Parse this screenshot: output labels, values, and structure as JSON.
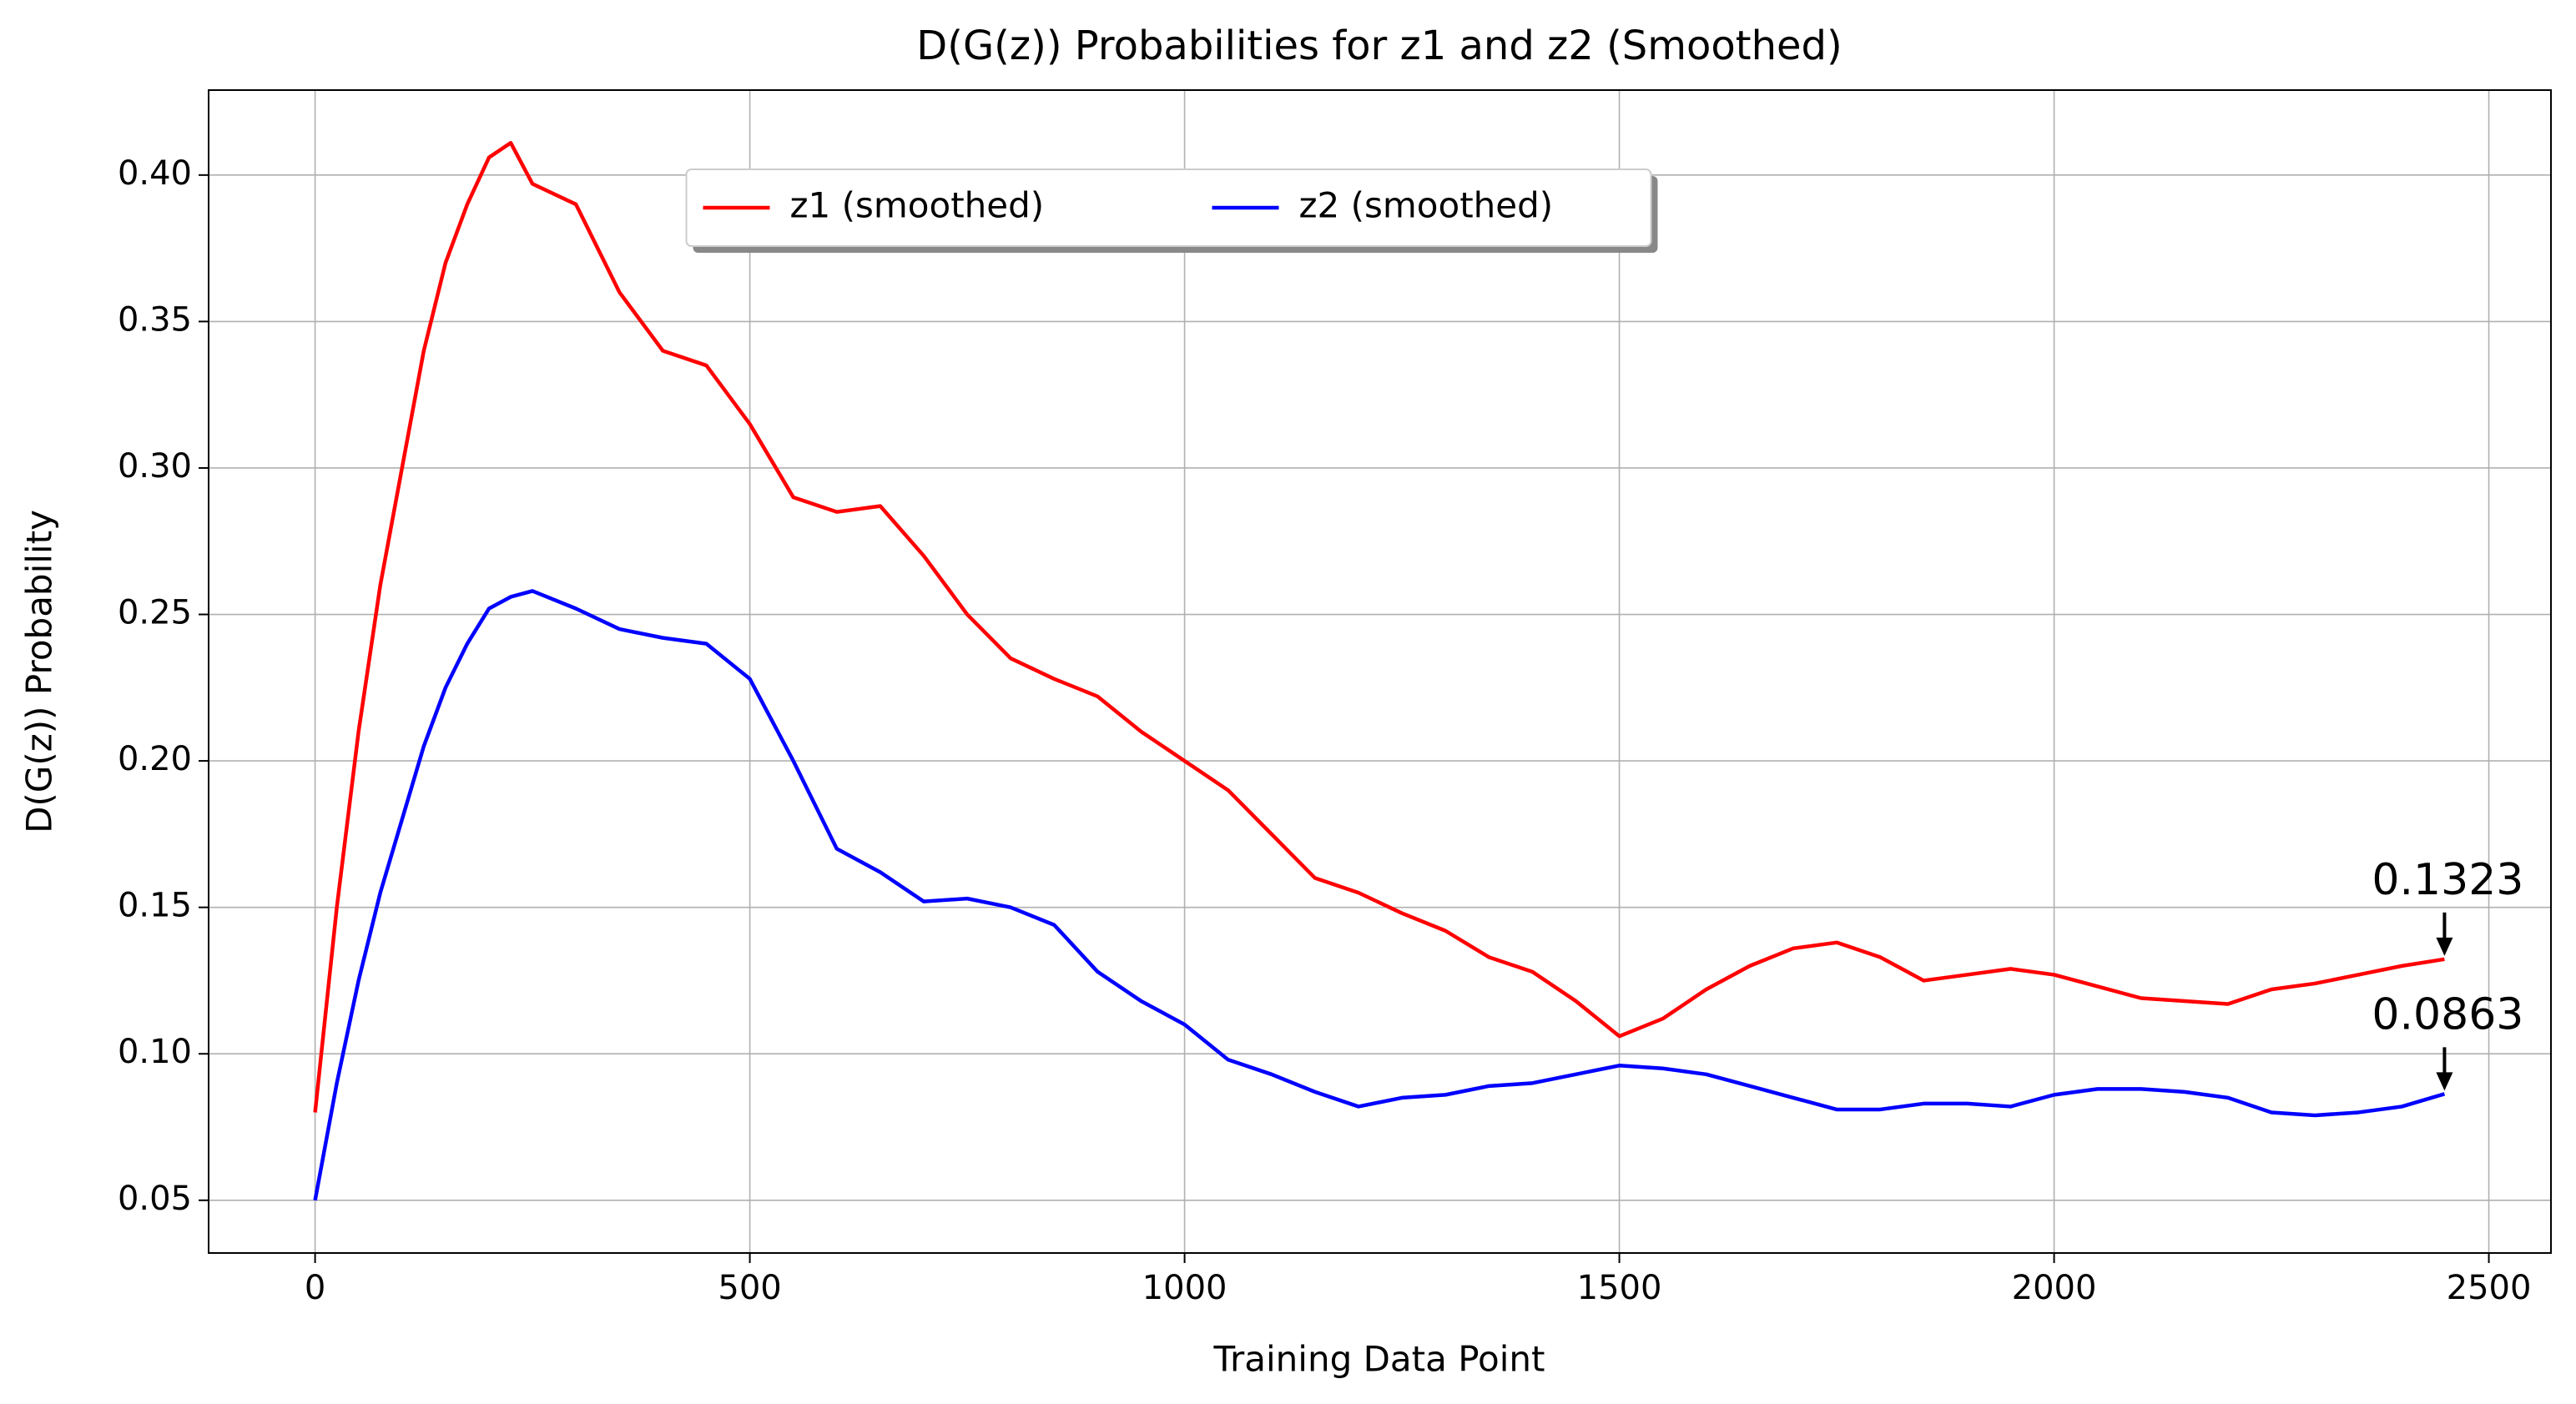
{
  "chart_data": {
    "type": "line",
    "title": "D(G(z)) Probabilities for z1 and z2 (Smoothed)",
    "xlabel": "Training Data Point",
    "ylabel": "D(G(z)) Probability",
    "x": [
      0,
      25,
      50,
      75,
      100,
      125,
      150,
      175,
      200,
      225,
      250,
      300,
      350,
      400,
      450,
      500,
      550,
      600,
      650,
      700,
      750,
      800,
      850,
      900,
      950,
      1000,
      1050,
      1100,
      1150,
      1200,
      1250,
      1300,
      1350,
      1400,
      1450,
      1500,
      1550,
      1600,
      1650,
      1700,
      1750,
      1800,
      1850,
      1900,
      1950,
      2000,
      2050,
      2100,
      2150,
      2200,
      2250,
      2300,
      2350,
      2400,
      2449
    ],
    "series": [
      {
        "name": "z1 (smoothed)",
        "color": "#ff0000",
        "values": [
          0.08,
          0.15,
          0.21,
          0.26,
          0.3,
          0.34,
          0.37,
          0.39,
          0.406,
          0.411,
          0.397,
          0.39,
          0.36,
          0.34,
          0.335,
          0.315,
          0.29,
          0.285,
          0.287,
          0.27,
          0.25,
          0.235,
          0.228,
          0.222,
          0.21,
          0.2,
          0.19,
          0.175,
          0.16,
          0.155,
          0.148,
          0.142,
          0.133,
          0.128,
          0.118,
          0.106,
          0.112,
          0.122,
          0.13,
          0.136,
          0.138,
          0.133,
          0.125,
          0.127,
          0.129,
          0.127,
          0.123,
          0.119,
          0.118,
          0.117,
          0.122,
          0.124,
          0.127,
          0.13,
          0.1323
        ]
      },
      {
        "name": "z2 (smoothed)",
        "color": "#0000ff",
        "values": [
          0.05,
          0.09,
          0.125,
          0.155,
          0.18,
          0.205,
          0.225,
          0.24,
          0.252,
          0.256,
          0.258,
          0.252,
          0.245,
          0.242,
          0.24,
          0.228,
          0.2,
          0.17,
          0.162,
          0.152,
          0.153,
          0.15,
          0.144,
          0.128,
          0.118,
          0.11,
          0.098,
          0.093,
          0.087,
          0.082,
          0.085,
          0.086,
          0.089,
          0.09,
          0.093,
          0.096,
          0.095,
          0.093,
          0.089,
          0.085,
          0.081,
          0.081,
          0.083,
          0.083,
          0.082,
          0.086,
          0.088,
          0.088,
          0.087,
          0.085,
          0.08,
          0.079,
          0.08,
          0.082,
          0.0863
        ]
      }
    ],
    "annotations": [
      {
        "text": "0.1323",
        "series": 0
      },
      {
        "text": "0.0863",
        "series": 1
      }
    ],
    "xlim": [
      -122.45,
      2571.45
    ],
    "ylim": [
      0.032,
      0.429
    ],
    "xticks": [
      0,
      500,
      1000,
      1500,
      2000,
      2500
    ],
    "yticks": [
      0.05,
      {
        "value": 0.1,
        "label": "0.10"
      },
      0.15,
      {
        "value": 0.2,
        "label": "0.20"
      },
      0.25,
      {
        "value": 0.3,
        "label": "0.30"
      },
      0.35,
      {
        "value": 0.4,
        "label": "0.40"
      }
    ],
    "grid": true,
    "legend": "upper center"
  }
}
